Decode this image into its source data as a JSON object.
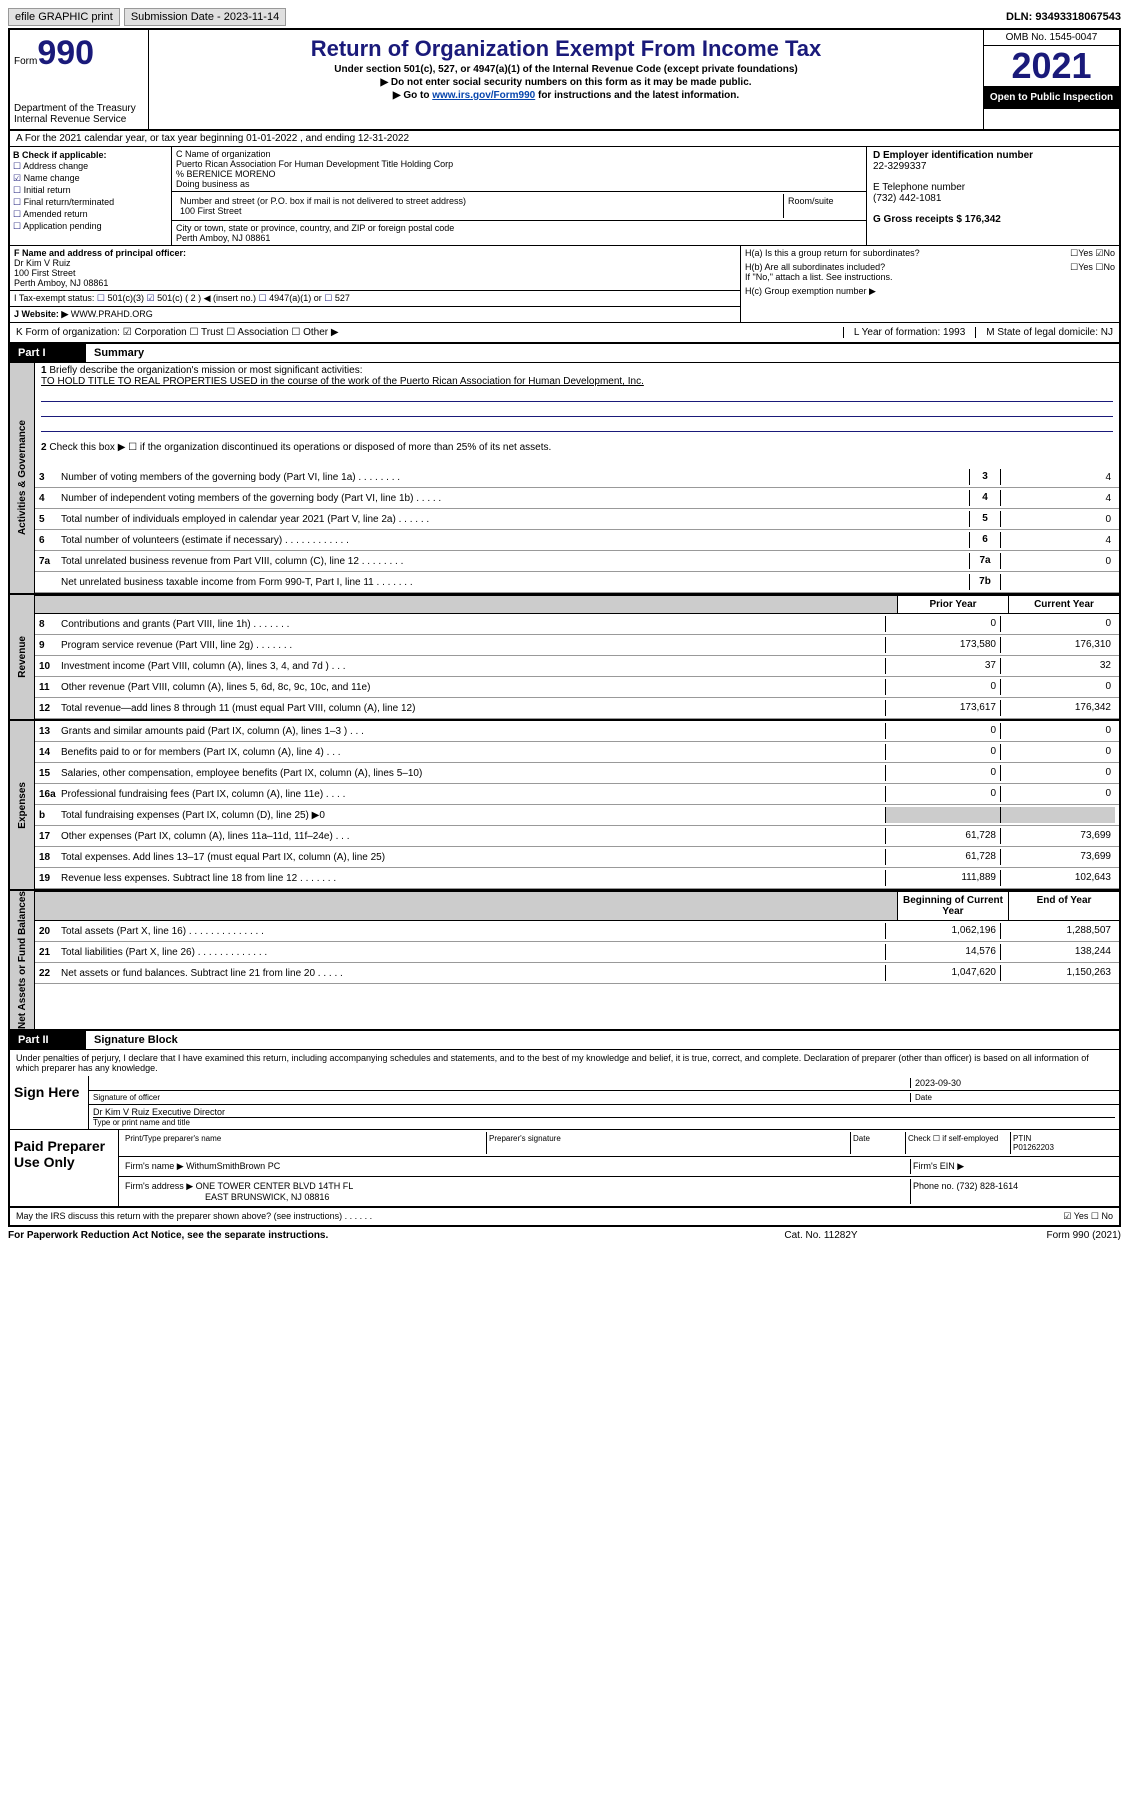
{
  "topbar": {
    "efile": "efile GRAPHIC print",
    "subdate_label": "Submission Date - 2023-11-14",
    "dln": "DLN: 93493318067543"
  },
  "header": {
    "form_word": "Form",
    "form_num": "990",
    "dept": "Department of the Treasury\nInternal Revenue Service",
    "title": "Return of Organization Exempt From Income Tax",
    "sub": "Under section 501(c), 527, or 4947(a)(1) of the Internal Revenue Code (except private foundations)",
    "instr1": "▶ Do not enter social security numbers on this form as it may be made public.",
    "instr2_pre": "▶ Go to ",
    "instr2_link": "www.irs.gov/Form990",
    "instr2_post": " for instructions and the latest information.",
    "omb": "OMB No. 1545-0047",
    "year": "2021",
    "open": "Open to Public Inspection"
  },
  "rowA": "A For the 2021 calendar year, or tax year beginning 01-01-2022  , and ending 12-31-2022",
  "colB": {
    "hdr": "B Check if applicable:",
    "items": [
      "Address change",
      "Name change",
      "Initial return",
      "Final return/terminated",
      "Amended return",
      "Application pending"
    ],
    "checked_idx": 1
  },
  "colC": {
    "name_label": "C Name of organization",
    "name1": "Puerto Rican Association For Human Development Title Holding Corp",
    "name2": "% BERENICE MORENO",
    "dba": "Doing business as",
    "street_label": "Number and street (or P.O. box if mail is not delivered to street address)",
    "street": "100 First Street",
    "room_label": "Room/suite",
    "city_label": "City or town, state or province, country, and ZIP or foreign postal code",
    "city": "Perth Amboy, NJ  08861"
  },
  "colDE": {
    "d_label": "D Employer identification number",
    "d_val": "22-3299337",
    "e_label": "E Telephone number",
    "e_val": "(732) 442-1081",
    "g": "G Gross receipts $ 176,342"
  },
  "rowF": {
    "label": "F  Name and address of principal officer:",
    "name": "Dr Kim V Ruiz",
    "street": "100 First Street",
    "city": "Perth Amboy, NJ  08861"
  },
  "rowI": {
    "label": "I    Tax-exempt status:",
    "opts": [
      "501(c)(3)",
      "501(c) ( 2 ) ◀ (insert no.)",
      "4947(a)(1) or",
      "527"
    ],
    "checked_idx": 1
  },
  "rowJ": {
    "label": "J   Website: ▶",
    "val": "WWW.PRAHD.ORG"
  },
  "colH": {
    "ha": "H(a)  Is this a group return for subordinates?",
    "ha_yes": "☐Yes ☑No",
    "hb": "H(b)  Are all subordinates included?",
    "hb_yes": "☐Yes ☐No",
    "hb_note": "If \"No,\" attach a list. See instructions.",
    "hc": "H(c)  Group exemption number ▶"
  },
  "rowK": {
    "left": "K Form of organization:  ☑ Corporation  ☐ Trust  ☐ Association  ☐ Other ▶",
    "mid": "L Year of formation: 1993",
    "right": "M State of legal domicile: NJ"
  },
  "part1": {
    "label": "Part I",
    "name": "Summary",
    "q1": "Briefly describe the organization's mission or most significant activities:",
    "q1_ans": "TO HOLD TITLE TO REAL PROPERTIES USED in the course of the work of the Puerto Rican Association for Human Development, Inc.",
    "q2": "Check this box ▶ ☐  if the organization discontinued its operations or disposed of more than 25% of its net assets.",
    "lines_gov": [
      {
        "n": "3",
        "t": "Number of voting members of the governing body (Part VI, line 1a)   .    .    .    .    .    .    .    .",
        "box": "3",
        "v": "4"
      },
      {
        "n": "4",
        "t": "Number of independent voting members of the governing body (Part VI, line 1b)   .    .    .    .    .",
        "box": "4",
        "v": "4"
      },
      {
        "n": "5",
        "t": "Total number of individuals employed in calendar year 2021 (Part V, line 2a)   .    .    .    .    .    .",
        "box": "5",
        "v": "0"
      },
      {
        "n": "6",
        "t": "Total number of volunteers (estimate if necessary)   .    .    .    .    .    .    .    .    .    .    .    .",
        "box": "6",
        "v": "4"
      },
      {
        "n": "7a",
        "t": "Total unrelated business revenue from Part VIII, column (C), line 12   .    .    .    .    .    .    .    .",
        "box": "7a",
        "v": "0"
      },
      {
        "n": "",
        "t": "Net unrelated business taxable income from Form 990-T, Part I, line 11   .    .    .    .    .    .    .",
        "box": "7b",
        "v": ""
      }
    ],
    "hdr_prior": "Prior Year",
    "hdr_curr": "Current Year",
    "lines_rev": [
      {
        "n": "8",
        "t": "Contributions and grants (Part VIII, line 1h)   .    .    .    .    .    .    .",
        "p": "0",
        "c": "0"
      },
      {
        "n": "9",
        "t": "Program service revenue (Part VIII, line 2g)   .    .    .    .    .    .    .",
        "p": "173,580",
        "c": "176,310"
      },
      {
        "n": "10",
        "t": "Investment income (Part VIII, column (A), lines 3, 4, and 7d )   .    .    .",
        "p": "37",
        "c": "32"
      },
      {
        "n": "11",
        "t": "Other revenue (Part VIII, column (A), lines 5, 6d, 8c, 9c, 10c, and 11e)",
        "p": "0",
        "c": "0"
      },
      {
        "n": "12",
        "t": "Total revenue—add lines 8 through 11 (must equal Part VIII, column (A), line 12)",
        "p": "173,617",
        "c": "176,342"
      }
    ],
    "lines_exp": [
      {
        "n": "13",
        "t": "Grants and similar amounts paid (Part IX, column (A), lines 1–3 )   .    .    .",
        "p": "0",
        "c": "0"
      },
      {
        "n": "14",
        "t": "Benefits paid to or for members (Part IX, column (A), line 4)   .    .    .",
        "p": "0",
        "c": "0"
      },
      {
        "n": "15",
        "t": "Salaries, other compensation, employee benefits (Part IX, column (A), lines 5–10)",
        "p": "0",
        "c": "0"
      },
      {
        "n": "16a",
        "t": "Professional fundraising fees (Part IX, column (A), line 11e)   .    .    .    .",
        "p": "0",
        "c": "0"
      },
      {
        "n": "b",
        "t": "Total fundraising expenses (Part IX, column (D), line 25) ▶0",
        "p": "",
        "c": "",
        "gray": true
      },
      {
        "n": "17",
        "t": "Other expenses (Part IX, column (A), lines 11a–11d, 11f–24e)   .    .    .",
        "p": "61,728",
        "c": "73,699"
      },
      {
        "n": "18",
        "t": "Total expenses. Add lines 13–17 (must equal Part IX, column (A), line 25)",
        "p": "61,728",
        "c": "73,699"
      },
      {
        "n": "19",
        "t": "Revenue less expenses. Subtract line 18 from line 12   .    .    .    .    .    .    .",
        "p": "111,889",
        "c": "102,643"
      }
    ],
    "hdr_beg": "Beginning of Current Year",
    "hdr_end": "End of Year",
    "lines_net": [
      {
        "n": "20",
        "t": "Total assets (Part X, line 16)   .    .    .    .    .    .    .    .    .    .    .    .    .    .",
        "p": "1,062,196",
        "c": "1,288,507"
      },
      {
        "n": "21",
        "t": "Total liabilities (Part X, line 26)   .    .    .    .    .    .    .    .    .    .    .    .    .",
        "p": "14,576",
        "c": "138,244"
      },
      {
        "n": "22",
        "t": "Net assets or fund balances. Subtract line 21 from line 20   .    .    .    .    .",
        "p": "1,047,620",
        "c": "1,150,263"
      }
    ],
    "tab_gov": "Activities & Governance",
    "tab_rev": "Revenue",
    "tab_exp": "Expenses",
    "tab_net": "Net Assets or Fund Balances"
  },
  "part2": {
    "label": "Part II",
    "name": "Signature Block",
    "decl": "Under penalties of perjury, I declare that I have examined this return, including accompanying schedules and statements, and to the best of my knowledge and belief, it is true, correct, and complete. Declaration of preparer (other than officer) is based on all information of which preparer has any knowledge.",
    "sign_here": "Sign Here",
    "sig_officer": "Signature of officer",
    "date_label": "Date",
    "date_val": "2023-09-30",
    "officer_name": "Dr Kim V Ruiz  Executive Director",
    "type_name": "Type or print name and title",
    "paid": "Paid Preparer Use Only",
    "prep_name": "Print/Type preparer's name",
    "prep_sig": "Preparer's signature",
    "prep_date": "Date",
    "check_self": "Check ☐ if self-employed",
    "ptin_label": "PTIN",
    "ptin": "P01262203",
    "firm_name_l": "Firm's name     ▶",
    "firm_name": "WithumSmithBrown PC",
    "firm_ein": "Firm's EIN ▶",
    "firm_addr_l": "Firm's address ▶",
    "firm_addr1": "ONE TOWER CENTER BLVD 14TH FL",
    "firm_addr2": "EAST BRUNSWICK, NJ  08816",
    "firm_phone": "Phone no. (732) 828-1614",
    "may_irs": "May the IRS discuss this return with the preparer shown above? (see instructions)   .    .    .    .    .    .",
    "may_irs_ans": "☑ Yes  ☐ No"
  },
  "footer": {
    "l": "For Paperwork Reduction Act Notice, see the separate instructions.",
    "m": "Cat. No. 11282Y",
    "r": "Form 990 (2021)"
  }
}
